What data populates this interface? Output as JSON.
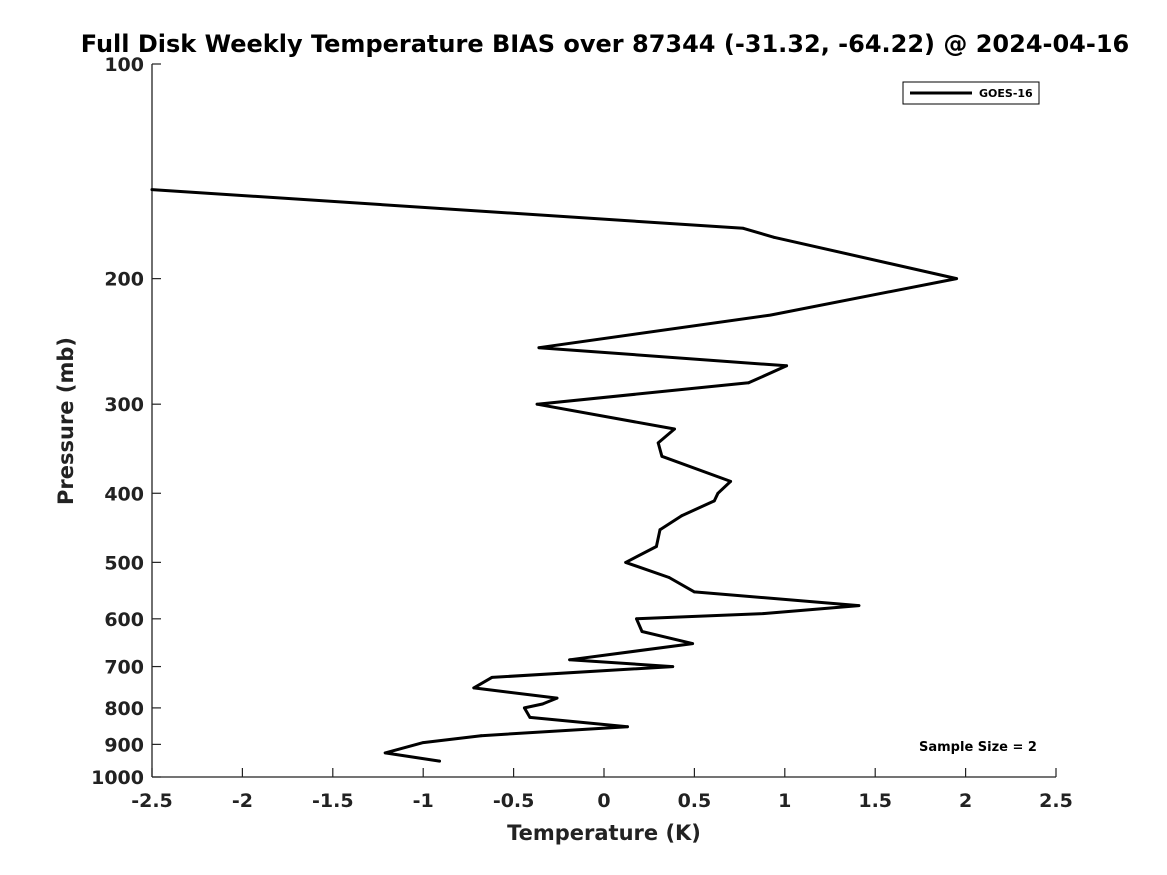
{
  "chart_data": {
    "type": "line",
    "title": "Full Disk Weekly Temperature BIAS over 87344 (-31.32, -64.22) @ 2024-04-16",
    "xlabel": "Temperature (K)",
    "ylabel": "Pressure (mb)",
    "xlim": [
      -2.5,
      2.5
    ],
    "ylim": [
      1000,
      100
    ],
    "y_scale": "log",
    "y_reversed": true,
    "grid": false,
    "legend_position": "top-right",
    "x_ticks": [
      {
        "value": -2.5,
        "label": "-2.5"
      },
      {
        "value": -2,
        "label": "-2"
      },
      {
        "value": -1.5,
        "label": "-1.5"
      },
      {
        "value": -1,
        "label": "-1"
      },
      {
        "value": -0.5,
        "label": "-0.5"
      },
      {
        "value": 0,
        "label": "0"
      },
      {
        "value": 0.5,
        "label": "0.5"
      },
      {
        "value": 1,
        "label": "1"
      },
      {
        "value": 1.5,
        "label": "1.5"
      },
      {
        "value": 2,
        "label": "2"
      },
      {
        "value": 2.5,
        "label": "2.5"
      }
    ],
    "y_ticks": [
      {
        "value": 100,
        "label": "100"
      },
      {
        "value": 200,
        "label": "200"
      },
      {
        "value": 300,
        "label": "300"
      },
      {
        "value": 400,
        "label": "400"
      },
      {
        "value": 500,
        "label": "500"
      },
      {
        "value": 600,
        "label": "600"
      },
      {
        "value": 700,
        "label": "700"
      },
      {
        "value": 800,
        "label": "800"
      },
      {
        "value": 900,
        "label": "900"
      },
      {
        "value": 1000,
        "label": "1000"
      }
    ],
    "series": [
      {
        "name": "GOES-16",
        "color": "#000000",
        "points": [
          {
            "x": -2.5,
            "y": 150
          },
          {
            "x": 0.77,
            "y": 170
          },
          {
            "x": 0.94,
            "y": 175
          },
          {
            "x": 1.95,
            "y": 200
          },
          {
            "x": 0.92,
            "y": 225
          },
          {
            "x": -0.36,
            "y": 250
          },
          {
            "x": 1.01,
            "y": 265
          },
          {
            "x": 0.8,
            "y": 280
          },
          {
            "x": -0.37,
            "y": 300
          },
          {
            "x": 0.39,
            "y": 325
          },
          {
            "x": 0.3,
            "y": 340
          },
          {
            "x": 0.32,
            "y": 355
          },
          {
            "x": 0.7,
            "y": 385
          },
          {
            "x": 0.63,
            "y": 400
          },
          {
            "x": 0.61,
            "y": 410
          },
          {
            "x": 0.43,
            "y": 430
          },
          {
            "x": 0.31,
            "y": 450
          },
          {
            "x": 0.29,
            "y": 475
          },
          {
            "x": 0.12,
            "y": 500
          },
          {
            "x": 0.36,
            "y": 525
          },
          {
            "x": 0.5,
            "y": 550
          },
          {
            "x": 1.41,
            "y": 575
          },
          {
            "x": 0.88,
            "y": 590
          },
          {
            "x": 0.18,
            "y": 600
          },
          {
            "x": 0.21,
            "y": 625
          },
          {
            "x": 0.49,
            "y": 650
          },
          {
            "x": -0.19,
            "y": 685
          },
          {
            "x": 0.38,
            "y": 700
          },
          {
            "x": -0.62,
            "y": 725
          },
          {
            "x": -0.72,
            "y": 750
          },
          {
            "x": -0.26,
            "y": 775
          },
          {
            "x": -0.34,
            "y": 790
          },
          {
            "x": -0.44,
            "y": 800
          },
          {
            "x": -0.41,
            "y": 825
          },
          {
            "x": 0.13,
            "y": 850
          },
          {
            "x": -0.68,
            "y": 875
          },
          {
            "x": -1.0,
            "y": 895
          },
          {
            "x": -1.21,
            "y": 925
          },
          {
            "x": -0.91,
            "y": 950
          }
        ]
      }
    ],
    "annotation": "Sample Size = 2"
  }
}
